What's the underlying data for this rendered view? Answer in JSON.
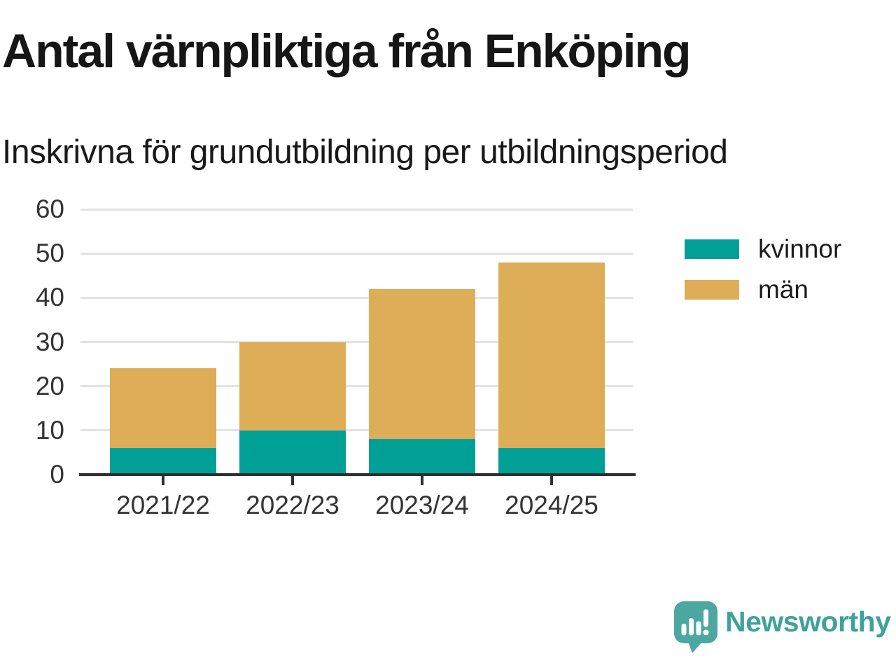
{
  "title": "Antal värnpliktiga från Enköping",
  "subtitle": "Inskrivna för grundutbildning per utbildningsperiod",
  "chart_data": {
    "type": "bar",
    "stacked": true,
    "categories": [
      "2021/22",
      "2022/23",
      "2023/24",
      "2024/25"
    ],
    "series": [
      {
        "name": "kvinnor",
        "color": "#00A096",
        "values": [
          6,
          10,
          8,
          6
        ]
      },
      {
        "name": "män",
        "color": "#DDAD57",
        "values": [
          18,
          20,
          34,
          42
        ]
      }
    ],
    "totals": [
      24,
      30,
      42,
      48
    ],
    "title": "Antal värnpliktiga från Enköping",
    "subtitle": "Inskrivna för grundutbildning per utbildningsperiod",
    "xlabel": "",
    "ylabel": "",
    "ylim": [
      0,
      60
    ],
    "yticks": [
      0,
      10,
      20,
      30,
      40,
      50,
      60
    ],
    "grid": "horizontal",
    "legend_position": "right"
  },
  "legend": {
    "items": [
      {
        "label": "kvinnor",
        "color": "#00A096"
      },
      {
        "label": "män",
        "color": "#DDAD57"
      }
    ]
  },
  "branding": {
    "logo_text": "Newsworthy",
    "logo_text_color": "#3EA29B",
    "bubble_color": "#4CA7A1"
  },
  "colors": {
    "background": "#FFFFFF",
    "grid": "#E3E3E3",
    "axis": "#303030",
    "tick_label": "#333333",
    "title": "#161616",
    "subtitle": "#191919"
  }
}
